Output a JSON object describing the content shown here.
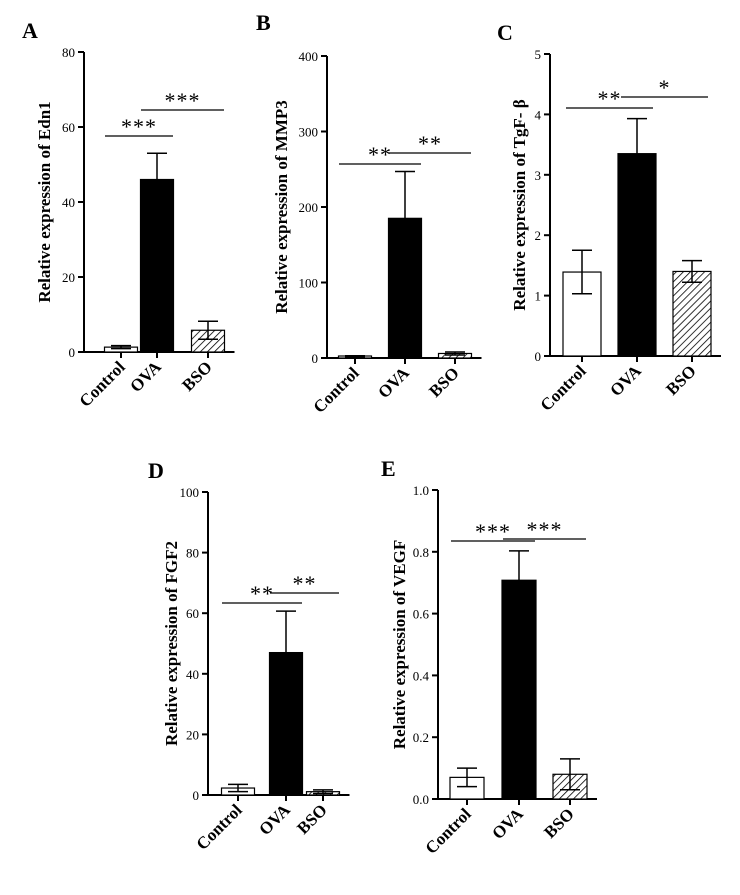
{
  "figure": {
    "colors": {
      "axis": "#000000",
      "control_fill": "#ffffff",
      "ova_fill": "#000000",
      "bso_hatch": "#000000"
    }
  },
  "chart_data": [
    {
      "type": "bar",
      "panel": "A",
      "categories": [
        "Control",
        "OVA",
        "BSO"
      ],
      "values": [
        1.3,
        46,
        5.8
      ],
      "errors": [
        0.4,
        7,
        2.4
      ],
      "ylabel": "Relative expression of Edn1",
      "ylim": [
        0,
        80
      ],
      "yticks": [
        0,
        20,
        40,
        60,
        80
      ],
      "ytick_labels": [
        "0",
        "20",
        "40",
        "60",
        "80"
      ],
      "significance": [
        {
          "from": "Control",
          "to": "OVA",
          "label": "***"
        },
        {
          "from": "OVA",
          "to": "BSO",
          "label": "***"
        }
      ]
    },
    {
      "type": "bar",
      "panel": "B",
      "categories": [
        "Control",
        "OVA",
        "BSO"
      ],
      "values": [
        2,
        185,
        6
      ],
      "errors": [
        1,
        62,
        2
      ],
      "ylabel": "Relative expression of MMP3",
      "ylim": [
        0,
        400
      ],
      "yticks": [
        0,
        100,
        200,
        300,
        400
      ],
      "ytick_labels": [
        "0",
        "100",
        "200",
        "300",
        "400"
      ],
      "significance": [
        {
          "from": "Control",
          "to": "OVA",
          "label": "**"
        },
        {
          "from": "OVA",
          "to": "BSO",
          "label": "**"
        }
      ]
    },
    {
      "type": "bar",
      "panel": "C",
      "categories": [
        "Control",
        "OVA",
        "BSO"
      ],
      "values": [
        1.39,
        3.35,
        1.4
      ],
      "errors": [
        0.36,
        0.58,
        0.18
      ],
      "ylabel": "Relative expression of TgF- β",
      "ylim": [
        0,
        5
      ],
      "yticks": [
        0,
        1,
        2,
        3,
        4,
        5
      ],
      "ytick_labels": [
        "0",
        "1",
        "2",
        "3",
        "4",
        "5"
      ],
      "significance": [
        {
          "from": "Control",
          "to": "OVA",
          "label": "**"
        },
        {
          "from": "OVA",
          "to": "BSO",
          "label": "*"
        }
      ]
    },
    {
      "type": "bar",
      "panel": "D",
      "categories": [
        "Control",
        "OVA",
        "BSO"
      ],
      "values": [
        2.3,
        47,
        1.1
      ],
      "errors": [
        1.2,
        13.7,
        0.6
      ],
      "ylabel": "Relative expression of FGF2",
      "ylim": [
        0,
        100
      ],
      "yticks": [
        0,
        20,
        40,
        60,
        80,
        100
      ],
      "ytick_labels": [
        "0",
        "20",
        "40",
        "60",
        "80",
        "100"
      ],
      "significance": [
        {
          "from": "Control",
          "to": "OVA",
          "label": "**"
        },
        {
          "from": "OVA",
          "to": "BSO",
          "label": "**"
        }
      ]
    },
    {
      "type": "bar",
      "panel": "E",
      "categories": [
        "Control",
        "OVA",
        "BSO"
      ],
      "values": [
        0.07,
        0.708,
        0.08
      ],
      "errors": [
        0.03,
        0.095,
        0.05
      ],
      "ylabel": "Relative expression of VEGF",
      "ylim": [
        0,
        1.0
      ],
      "yticks": [
        0,
        0.2,
        0.4,
        0.6,
        0.8,
        1.0
      ],
      "ytick_labels": [
        "0.0",
        "0.2",
        "0.4",
        "0.6",
        "0.8",
        "1.0"
      ],
      "significance": [
        {
          "from": "Control",
          "to": "OVA",
          "label": "***"
        },
        {
          "from": "OVA",
          "to": "BSO",
          "label": "***"
        }
      ]
    }
  ]
}
